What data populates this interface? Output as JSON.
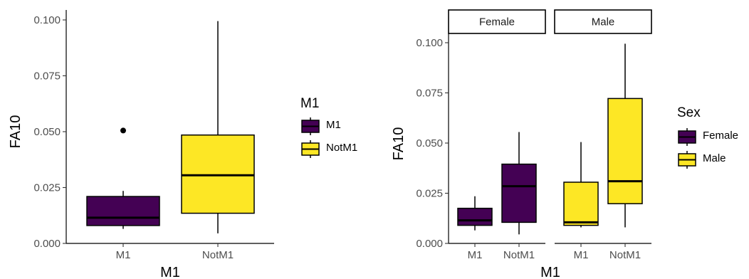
{
  "colors": {
    "M1": "#440154",
    "NotM1": "#fde725",
    "Female": "#440154",
    "Male": "#fde725"
  },
  "chart_data": [
    {
      "type": "boxplot",
      "xlabel": "M1",
      "ylabel": "FA10",
      "ylim": [
        0,
        0.1
      ],
      "yticks": [
        "0.000",
        "0.025",
        "0.050",
        "0.075",
        "0.100"
      ],
      "categories": [
        "M1",
        "NotM1"
      ],
      "legend": {
        "title": "M1",
        "placement": "right",
        "entries": [
          "M1",
          "NotM1"
        ]
      },
      "boxes": [
        {
          "category": "M1",
          "fill": "M1",
          "min": 0.0065,
          "q1": 0.008,
          "median": 0.0115,
          "q3": 0.021,
          "max": 0.0235,
          "outliers": [
            0.0505
          ]
        },
        {
          "category": "NotM1",
          "fill": "NotM1",
          "min": 0.0045,
          "q1": 0.0135,
          "median": 0.0305,
          "q3": 0.0485,
          "max": 0.0995,
          "outliers": []
        }
      ]
    },
    {
      "type": "boxplot",
      "facets": [
        "Female",
        "Male"
      ],
      "xlabel": "M1",
      "ylabel": "FA10",
      "ylim": [
        0,
        0.1
      ],
      "yticks": [
        "0.000",
        "0.025",
        "0.050",
        "0.075",
        "0.100"
      ],
      "categories": [
        "M1",
        "NotM1"
      ],
      "legend": {
        "title": "Sex",
        "placement": "right",
        "entries": [
          "Female",
          "Male"
        ]
      },
      "boxes": [
        {
          "facet": "Female",
          "category": "M1",
          "fill": "Female",
          "min": 0.0065,
          "q1": 0.009,
          "median": 0.0115,
          "q3": 0.0175,
          "max": 0.0235,
          "outliers": []
        },
        {
          "facet": "Female",
          "category": "NotM1",
          "fill": "Female",
          "min": 0.0045,
          "q1": 0.0105,
          "median": 0.0285,
          "q3": 0.0395,
          "max": 0.0555,
          "outliers": []
        },
        {
          "facet": "Male",
          "category": "M1",
          "fill": "Male",
          "min": 0.008,
          "q1": 0.009,
          "median": 0.0105,
          "q3": 0.0305,
          "max": 0.0505,
          "outliers": []
        },
        {
          "facet": "Male",
          "category": "NotM1",
          "fill": "Male",
          "min": 0.008,
          "q1": 0.0198,
          "median": 0.031,
          "q3": 0.0722,
          "max": 0.0995,
          "outliers": []
        }
      ]
    }
  ]
}
